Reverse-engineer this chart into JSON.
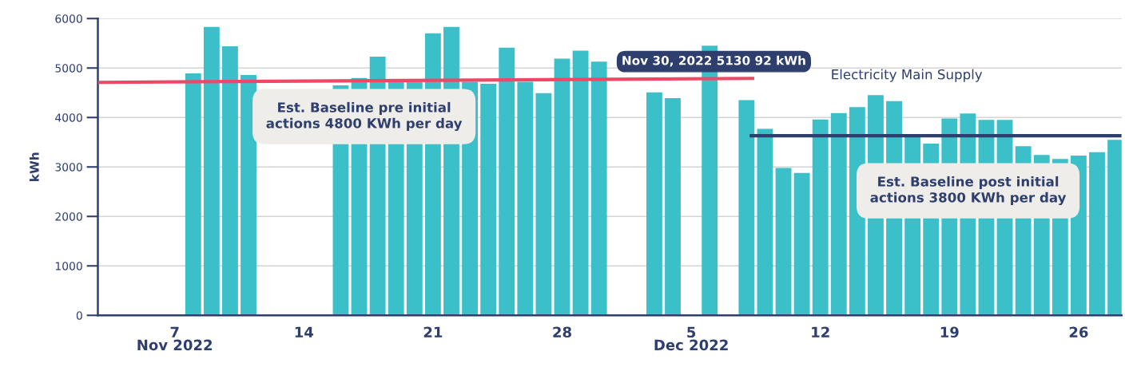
{
  "chart_data": {
    "type": "bar",
    "ylabel": "kWh",
    "x": [
      "2022-11-08",
      "2022-11-09",
      "2022-11-10",
      "2022-11-11",
      "2022-11-12",
      "2022-11-13",
      "2022-11-14",
      "2022-11-15",
      "2022-11-16",
      "2022-11-17",
      "2022-11-18",
      "2022-11-19",
      "2022-11-20",
      "2022-11-21",
      "2022-11-22",
      "2022-11-23",
      "2022-11-24",
      "2022-11-25",
      "2022-11-26",
      "2022-11-27",
      "2022-11-28",
      "2022-11-29",
      "2022-11-30",
      "2022-12-01",
      "2022-12-02",
      "2022-12-03",
      "2022-12-04",
      "2022-12-05",
      "2022-12-06",
      "2022-12-07",
      "2022-12-08",
      "2022-12-09",
      "2022-12-10",
      "2022-12-11",
      "2022-12-12",
      "2022-12-13",
      "2022-12-14",
      "2022-12-15",
      "2022-12-16",
      "2022-12-17",
      "2022-12-18",
      "2022-12-19",
      "2022-12-20",
      "2022-12-21",
      "2022-12-22",
      "2022-12-23",
      "2022-12-24",
      "2022-12-25",
      "2022-12-26",
      "2022-12-27",
      "2022-12-28"
    ],
    "series": [
      {
        "name": "Electricity Main Supply",
        "color": "#3bbfc9",
        "values": [
          4890,
          5830,
          5440,
          4860,
          null,
          null,
          null,
          null,
          4650,
          4800,
          5230,
          4720,
          4720,
          5700,
          5830,
          4720,
          4680,
          5410,
          4720,
          4490,
          5190,
          5350,
          5130.92,
          null,
          null,
          4510,
          4390,
          null,
          5450,
          null,
          4350,
          3770,
          2980,
          2880,
          3960,
          4090,
          4210,
          4450,
          4330,
          3620,
          3470,
          3980,
          4080,
          3950,
          3950,
          3420,
          3240,
          3160,
          3230,
          3300,
          3550
        ]
      },
      {
        "type": "line",
        "color": "#ee4866",
        "x": [
          "2022-11-02T20:00",
          "2022-12-08T10:00"
        ],
        "values": [
          4710,
          4790
        ]
      },
      {
        "type": "line",
        "color": "#2e3f6e",
        "x": [
          "2022-12-08T04:00",
          "2022-12-28T08:00"
        ],
        "values": [
          3630,
          3630
        ]
      }
    ],
    "xlim": [
      "2022-11-02T20:00",
      "2022-12-28T08:00"
    ],
    "xticks": [
      {
        "value": "2022-11-07",
        "label": "7\nNov 2022"
      },
      {
        "value": "2022-11-14",
        "label": "14"
      },
      {
        "value": "2022-11-21",
        "label": "21"
      },
      {
        "value": "2022-11-28",
        "label": "28"
      },
      {
        "value": "2022-12-05",
        "label": "5\nDec 2022"
      },
      {
        "value": "2022-12-12",
        "label": "12"
      },
      {
        "value": "2022-12-19",
        "label": "19"
      },
      {
        "value": "2022-12-26",
        "label": "26"
      }
    ],
    "ylim": [
      0,
      6000
    ],
    "yticks": [
      0,
      1000,
      2000,
      3000,
      4000,
      5000,
      6000
    ],
    "grid": "y",
    "legend": "top",
    "annotations": [
      {
        "text": "Nov 30, 2022 5130 92 kWh",
        "x": "2022-11-30",
        "y": 5130.92
      },
      "Est. Baseline pre initial\nactions 4800 KWh per day",
      "Est. Baseline post initial\nactions 3800 KWh per day"
    ]
  }
}
